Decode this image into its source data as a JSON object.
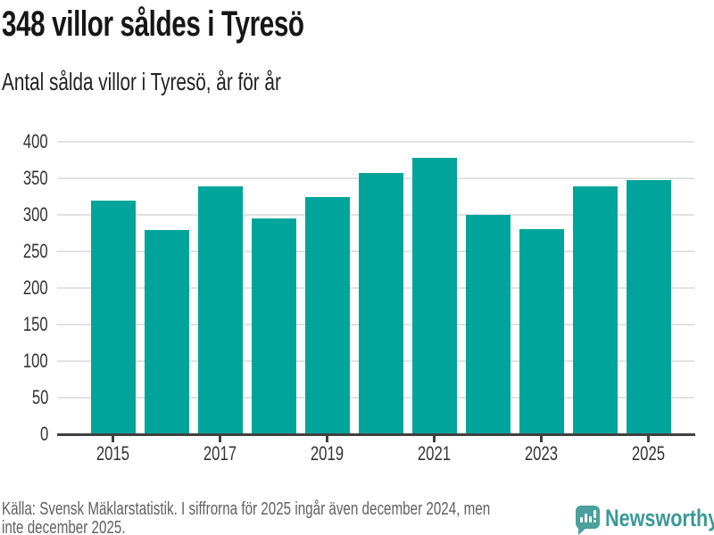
{
  "page": {
    "title": "348 villor såldes i Tyresö",
    "subtitle": "Antal sålda villor i Tyresö, år för år",
    "footer": {
      "line1": "Källa: Svensk Mäklarstatistik. I siffrorna för 2025 ingår även december 2024, men",
      "line2": "inte december 2025."
    },
    "brand": {
      "name": "Newsworthy",
      "icon": "newsworthy-bar-chart-bubble-icon"
    }
  },
  "colors": {
    "bar": "#00a49a",
    "grid": "#e2e2e2",
    "axis": "#404040",
    "tick_label": "#333333",
    "title_text": "#161616",
    "footer_text": "#606060",
    "brand_teal": "#3a9996",
    "brand_icon_teal": "#4ba09d"
  },
  "chart_data": {
    "type": "bar",
    "title": "348 villor såldes i Tyresö",
    "subtitle": "Antal sålda villor i Tyresö, år för år",
    "categories": [
      "2015",
      "2016",
      "2017",
      "2018",
      "2019",
      "2020",
      "2021",
      "2022",
      "2023",
      "2024",
      "2025"
    ],
    "values": [
      320,
      280,
      339,
      295,
      325,
      358,
      378,
      300,
      281,
      340,
      348
    ],
    "xlabel": "",
    "ylabel": "",
    "ylim": [
      0,
      400
    ],
    "yticks": [
      0,
      50,
      100,
      150,
      200,
      250,
      300,
      350,
      400
    ],
    "xtick_labels": [
      "2015",
      "2017",
      "2019",
      "2021",
      "2023",
      "2025"
    ],
    "labeled_category_indices": [
      0,
      2,
      4,
      6,
      8,
      10
    ],
    "grid": "horizontal",
    "legend": "none",
    "bar_color": "#00a49a"
  }
}
